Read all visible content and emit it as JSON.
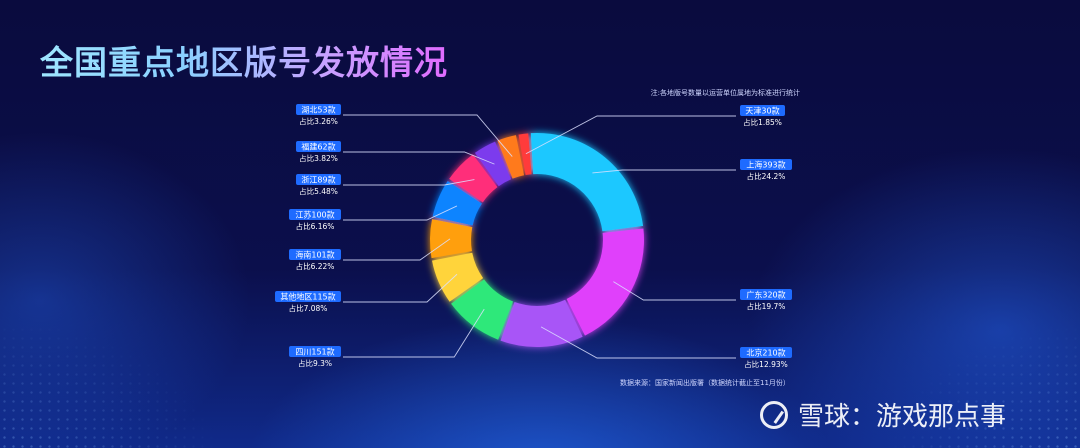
{
  "title": "全国重点地区版号发放情况",
  "note": "注:各地版号数量以运营单位属地为标准进行统计",
  "source": "数据来源：国家新闻出版署（数据统计截止至11月份）",
  "watermark": "雪球：游戏那点事",
  "chart_data": {
    "type": "pie",
    "donut": true,
    "title": "全国重点地区版号发放情况",
    "slices": [
      {
        "label": "上海393款",
        "share": "占比24.2%",
        "value": 393,
        "percent": 24.2,
        "color": "#1ec8ff",
        "side": "right"
      },
      {
        "label": "广东320款",
        "share": "占比19.7%",
        "value": 320,
        "percent": 19.7,
        "color": "#e040fb",
        "side": "right"
      },
      {
        "label": "北京210款",
        "share": "占比12.93%",
        "value": 210,
        "percent": 12.93,
        "color": "#a855f7",
        "side": "right"
      },
      {
        "label": "四川151款",
        "share": "占比9.3%",
        "value": 151,
        "percent": 9.3,
        "color": "#2ee87a",
        "side": "left"
      },
      {
        "label": "其他地区115款",
        "share": "占比7.08%",
        "value": 115,
        "percent": 7.08,
        "color": "#ffd43b",
        "side": "left"
      },
      {
        "label": "海南101款",
        "share": "占比6.22%",
        "value": 101,
        "percent": 6.22,
        "color": "#ff9f0a",
        "side": "left"
      },
      {
        "label": "江苏100款",
        "share": "占比6.16%",
        "value": 100,
        "percent": 6.16,
        "color": "#0a84ff",
        "side": "left"
      },
      {
        "label": "浙江89款",
        "share": "占比5.48%",
        "value": 89,
        "percent": 5.48,
        "color": "#ff2d7a",
        "side": "left"
      },
      {
        "label": "福建62款",
        "share": "占比3.82%",
        "value": 62,
        "percent": 3.82,
        "color": "#7c3aed",
        "side": "left"
      },
      {
        "label": "湖北53款",
        "share": "占比3.26%",
        "value": 53,
        "percent": 3.26,
        "color": "#ff7a1a",
        "side": "left"
      },
      {
        "label": "天津30款",
        "share": "占比1.85%",
        "value": 30,
        "percent": 1.85,
        "color": "#ff3b3b",
        "side": "right"
      }
    ],
    "legend": "none",
    "badge_color": "#1e6bff"
  }
}
